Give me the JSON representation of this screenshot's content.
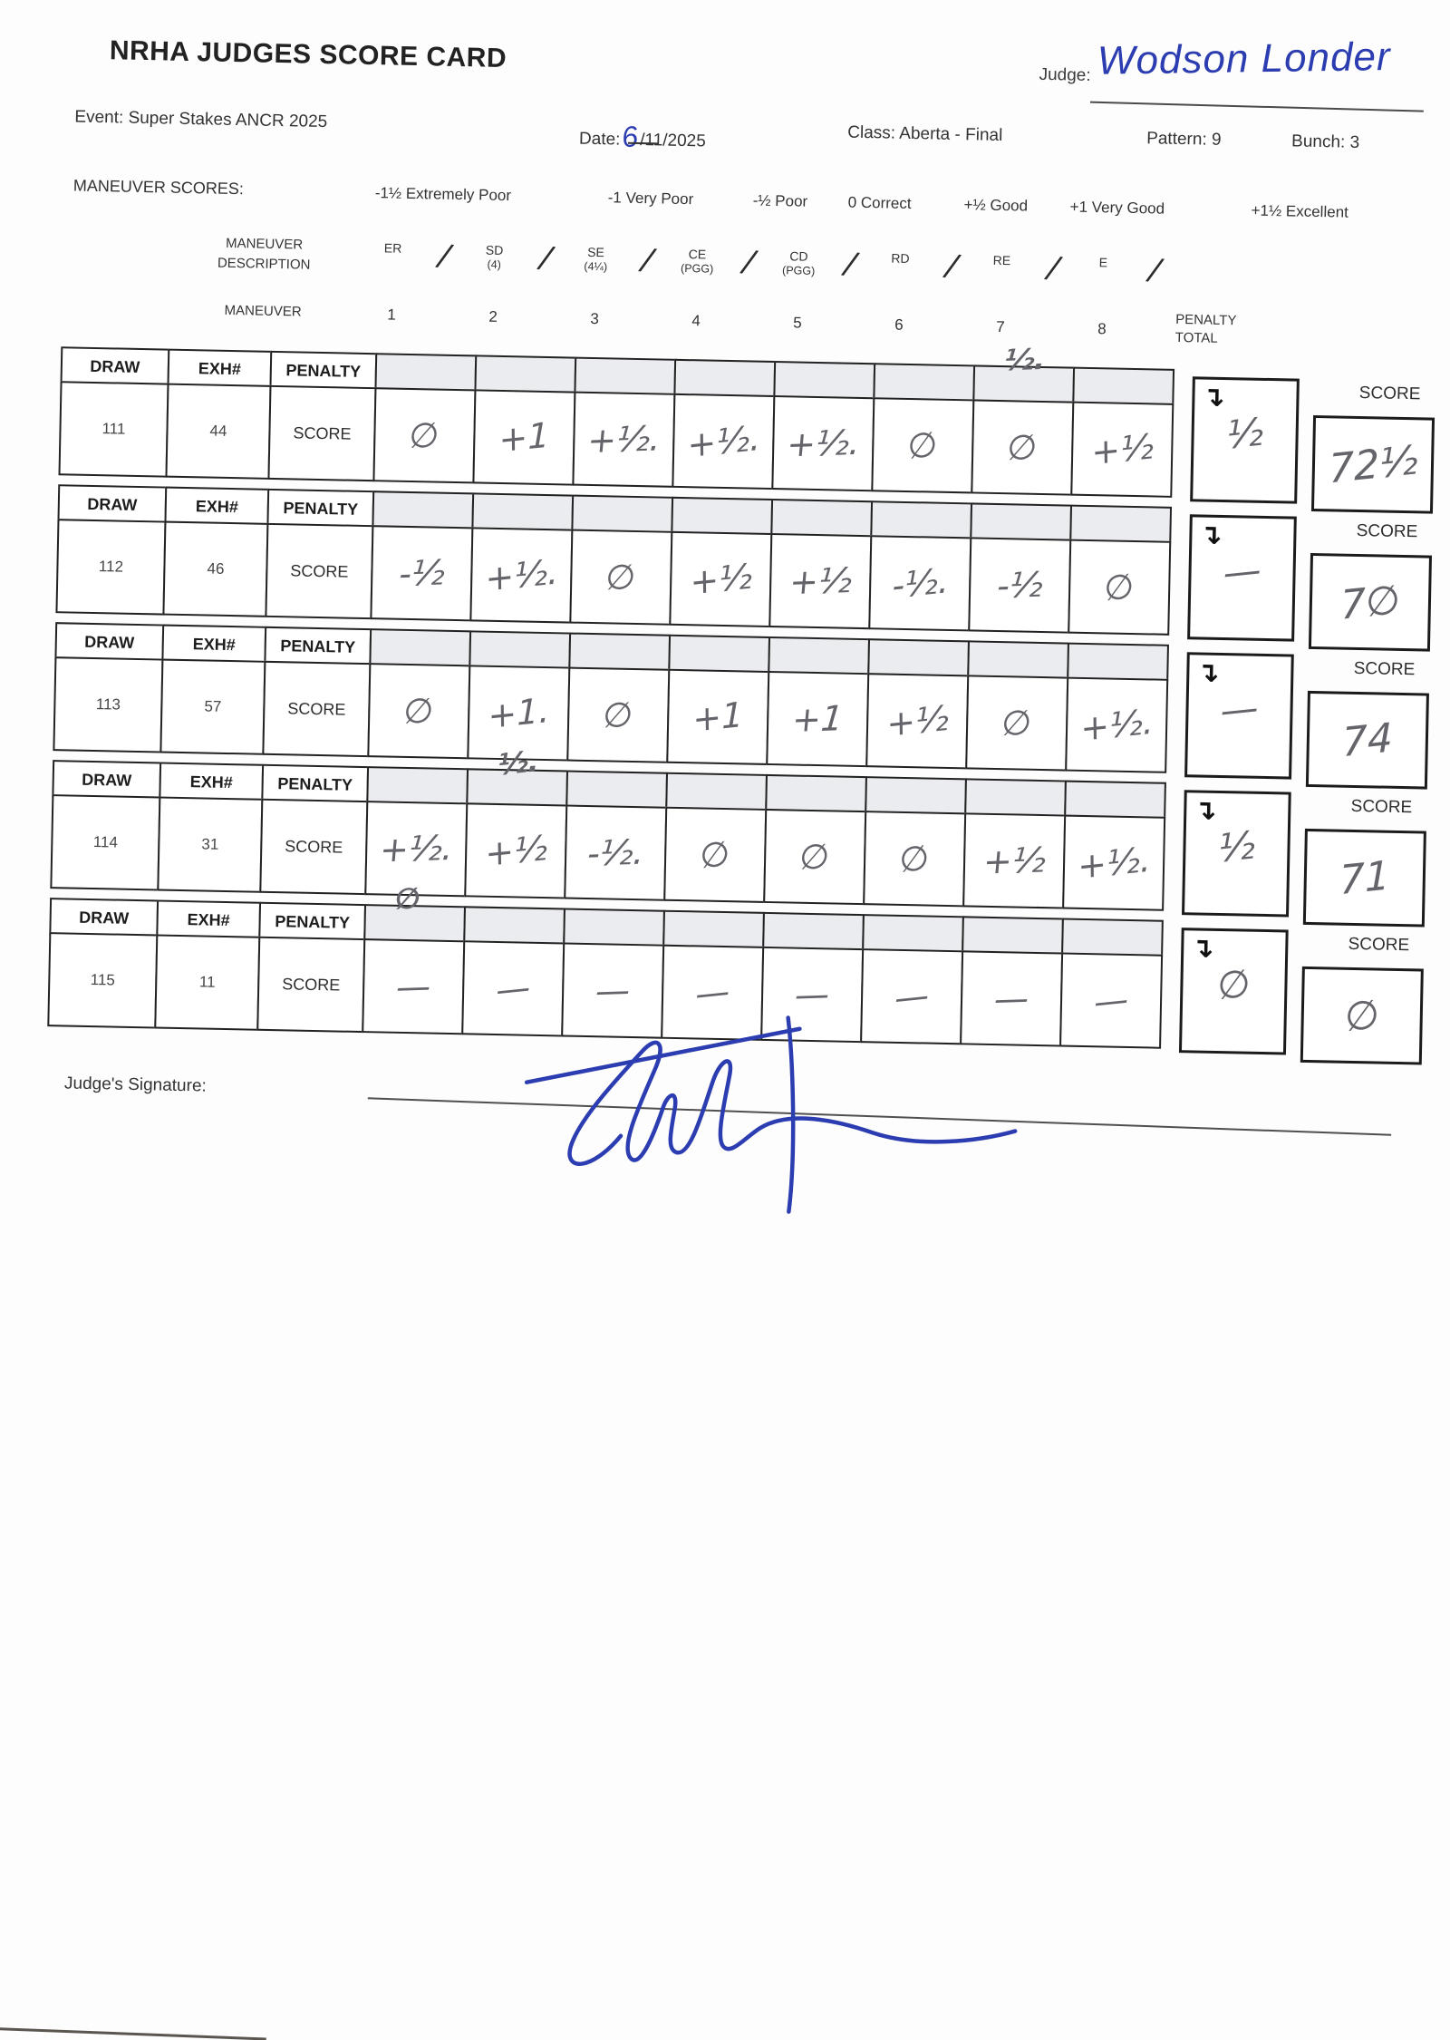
{
  "page": {
    "title": "NRHA JUDGES SCORE CARD",
    "judge_label": "Judge:",
    "judge_name": "Wodson Londer",
    "event_label": "Event:",
    "event": "Super Stakes ANCR 2025",
    "date_label": "Date:",
    "date_day": "6",
    "date_rest": "/11/2025",
    "class_label": "Class:",
    "class_value": "Aberta - Final",
    "pattern_label": "Pattern:",
    "pattern_value": "9",
    "bunch_label": "Bunch:",
    "bunch_value": "3"
  },
  "scores_legend": {
    "label": "MANEUVER SCORES:",
    "items": [
      "-1½ Extremely Poor",
      "-1 Very Poor",
      "-½ Poor",
      "0 Correct",
      "+½ Good",
      "+1 Very Good",
      "+1½ Excellent"
    ]
  },
  "maneuver_header": {
    "description_label": "MANEUVER DESCRIPTION",
    "descriptions": [
      {
        "code": "ER",
        "sub": ""
      },
      {
        "code": "SD",
        "sub": "(4)"
      },
      {
        "code": "SE",
        "sub": "(4¼)"
      },
      {
        "code": "CE",
        "sub": "(PGG)"
      },
      {
        "code": "CD",
        "sub": "(PGG)"
      },
      {
        "code": "RD",
        "sub": ""
      },
      {
        "code": "RE",
        "sub": ""
      },
      {
        "code": "E",
        "sub": ""
      }
    ],
    "maneuver_label": "MANEUVER",
    "numbers": [
      "1",
      "2",
      "3",
      "4",
      "5",
      "6",
      "7",
      "8"
    ],
    "penalty_total_label": "PENALTY TOTAL"
  },
  "table": {
    "col_draw": "DRAW",
    "col_exh": "EXH#",
    "col_penalty": "PENALTY",
    "row_score_label": "SCORE",
    "score_column_label": "SCORE",
    "rows": [
      {
        "draw": "111",
        "exh": "44",
        "penalties": [
          "",
          "",
          "",
          "",
          "",
          "",
          "½.",
          ""
        ],
        "scores": [
          "∅",
          "+1",
          "+½.",
          "+½.",
          "+½.",
          "∅",
          "∅",
          "+½"
        ],
        "penalty_total": "½",
        "total": "72½"
      },
      {
        "draw": "112",
        "exh": "46",
        "penalties": [
          "",
          "",
          "",
          "",
          "",
          "",
          "",
          ""
        ],
        "scores": [
          "-½",
          "+½.",
          "∅",
          "+½",
          "+½",
          "-½.",
          "-½",
          "∅"
        ],
        "penalty_total": "—",
        "total": "7∅"
      },
      {
        "draw": "113",
        "exh": "57",
        "penalties": [
          "",
          "",
          "",
          "",
          "",
          "",
          "",
          ""
        ],
        "scores": [
          "∅",
          "+1.",
          "∅",
          "+1",
          "+1",
          "+½",
          "∅",
          "+½."
        ],
        "penalty_total": "—",
        "total": "74"
      },
      {
        "draw": "114",
        "exh": "31",
        "penalties": [
          "",
          "½.",
          "",
          "",
          "",
          "",
          "",
          ""
        ],
        "scores": [
          "+½.",
          "+½",
          "-½.",
          "∅",
          "∅",
          "∅",
          "+½",
          "+½."
        ],
        "penalty_total": "½",
        "total": "71"
      },
      {
        "draw": "115",
        "exh": "11",
        "penalties": [
          "∅",
          "",
          "",
          "",
          "",
          "",
          "",
          ""
        ],
        "scores": [
          "—",
          "—",
          "—",
          "—",
          "—",
          "—",
          "—",
          "—"
        ],
        "penalty_total": "∅",
        "total": "∅"
      }
    ]
  },
  "footer": {
    "signature_label": "Judge's Signature:"
  }
}
